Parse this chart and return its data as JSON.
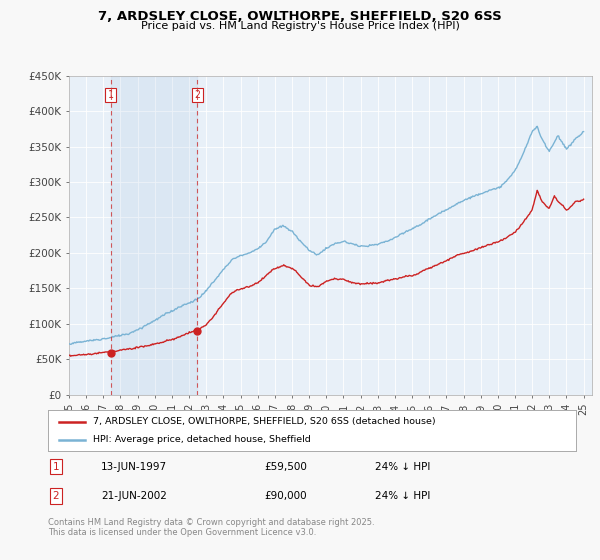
{
  "title": "7, ARDSLEY CLOSE, OWLTHORPE, SHEFFIELD, S20 6SS",
  "subtitle": "Price paid vs. HM Land Registry's House Price Index (HPI)",
  "bg_color": "#f8f8f8",
  "plot_bg": "#e8f0f8",
  "red_line_label": "7, ARDSLEY CLOSE, OWLTHORPE, SHEFFIELD, S20 6SS (detached house)",
  "blue_line_label": "HPI: Average price, detached house, Sheffield",
  "sale1_date": "13-JUN-1997",
  "sale1_price": "£59,500",
  "sale1_hpi": "24% ↓ HPI",
  "sale2_date": "21-JUN-2002",
  "sale2_price": "£90,000",
  "sale2_hpi": "24% ↓ HPI",
  "footer": "Contains HM Land Registry data © Crown copyright and database right 2025.\nThis data is licensed under the Open Government Licence v3.0.",
  "yticks": [
    0,
    50000,
    100000,
    150000,
    200000,
    250000,
    300000,
    350000,
    400000,
    450000
  ],
  "ytick_labels": [
    "£0",
    "£50K",
    "£100K",
    "£150K",
    "£200K",
    "£250K",
    "£300K",
    "£350K",
    "£400K",
    "£450K"
  ],
  "sale1_x": 1997.44,
  "sale1_y": 59500,
  "sale2_x": 2002.47,
  "sale2_y": 90000,
  "vline1_x": 1997.44,
  "vline2_x": 2002.47,
  "xlim_left": 1995.0,
  "xlim_right": 2025.5,
  "ylim_top": 450000
}
